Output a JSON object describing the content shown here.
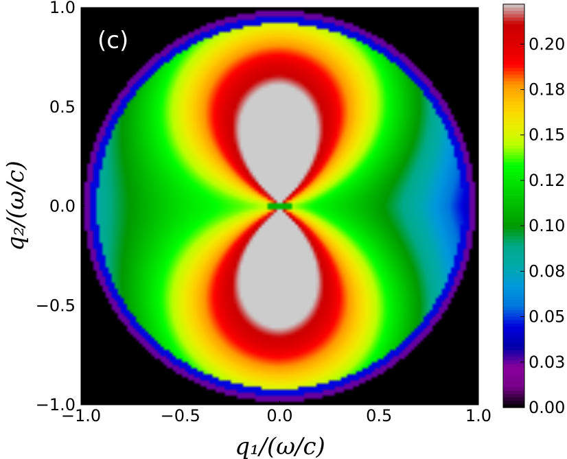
{
  "chart_data": {
    "type": "heatmap",
    "panel_label": "(c)",
    "xlabel": "q₁/(ω/c)",
    "ylabel": "q₂/(ω/c)",
    "xlim": [
      -1.0,
      1.0
    ],
    "ylim": [
      -1.0,
      1.0
    ],
    "x_ticks": [
      "−1.0",
      "−0.5",
      "0.0",
      "0.5",
      "1.0"
    ],
    "x_tick_values": [
      -1.0,
      -0.5,
      0.0,
      0.5,
      1.0
    ],
    "y_ticks": [
      "−1.0",
      "−0.5",
      "0.0",
      "0.5",
      "1.0"
    ],
    "y_tick_values": [
      -1.0,
      -0.5,
      0.0,
      0.5,
      1.0
    ],
    "colorbar": {
      "ticks": [
        "0.00",
        "0.03",
        "0.05",
        "0.08",
        "0.10",
        "0.12",
        "0.15",
        "0.18",
        "0.20"
      ],
      "tick_values": [
        0.0,
        0.025,
        0.05,
        0.075,
        0.1,
        0.125,
        0.15,
        0.175,
        0.2
      ],
      "min": 0.0,
      "max": 0.222,
      "colormap": "nipy_spectral"
    },
    "grid": false,
    "description_values": {
      "peak_value": 0.222,
      "lobes_center_q2": [
        0.3,
        -0.3
      ],
      "rim_value": 0.02
    }
  }
}
